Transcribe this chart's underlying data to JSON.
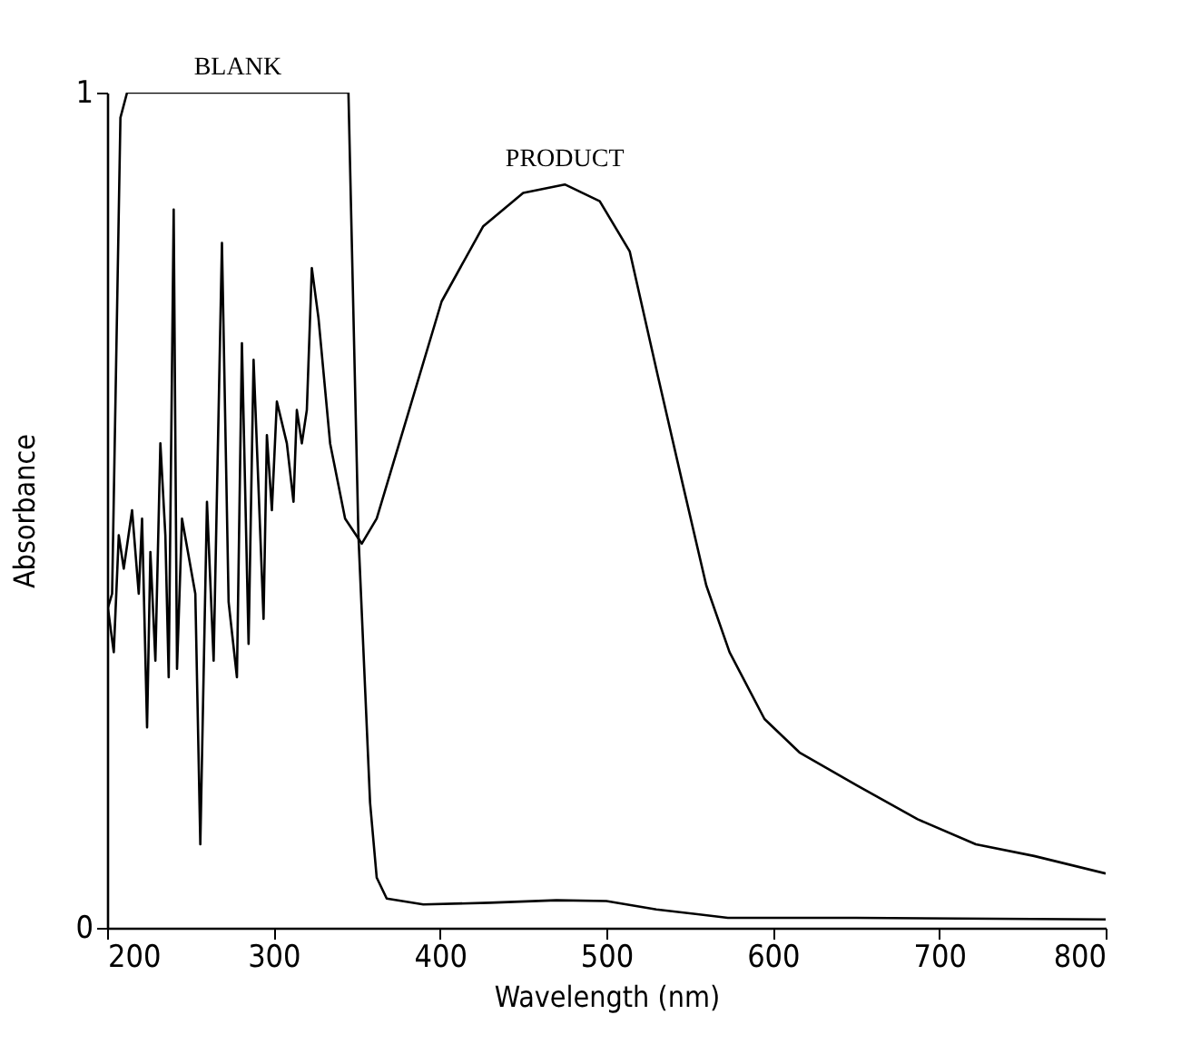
{
  "chart_data": {
    "type": "line",
    "xlabel": "Wavelength (nm)",
    "ylabel": "Absorbance",
    "xlim": [
      200,
      800
    ],
    "xticks": [
      200,
      300,
      400,
      500,
      600,
      700,
      800
    ],
    "ylim": [
      0,
      1
    ],
    "yticks": [
      0,
      1
    ],
    "grid": false,
    "marker": "none",
    "line_style": "solid",
    "series": [
      {
        "name": "BLANK",
        "color": "#000000",
        "x": [
          200,
          203,
          208,
          212,
          345,
          351,
          358,
          362,
          368,
          390,
          430,
          470,
          500,
          530,
          573,
          650,
          800
        ],
        "values": [
          0.38,
          0.4,
          0.97,
          1,
          1,
          0.47,
          0.15,
          0.06,
          0.035,
          0.028,
          0.03,
          0.033,
          0.032,
          0.022,
          0.012,
          0.012,
          0.01
        ]
      },
      {
        "name": "PRODUCT",
        "color": "#000000",
        "x": [
          200,
          204,
          207,
          210,
          215,
          219,
          221,
          224,
          226,
          229,
          232,
          235,
          237,
          240,
          242,
          245,
          253,
          256,
          260,
          264,
          269,
          273,
          278,
          281,
          285,
          288,
          294,
          296,
          299,
          302,
          308,
          312,
          314,
          317,
          320,
          323,
          327,
          334,
          343,
          353,
          362,
          380,
          401,
          426,
          450,
          475,
          496,
          514,
          531,
          546,
          560,
          574,
          595,
          616,
          651,
          687,
          722,
          757,
          800
        ],
        "values": [
          0.39,
          0.33,
          0.47,
          0.43,
          0.5,
          0.4,
          0.49,
          0.24,
          0.45,
          0.32,
          0.58,
          0.47,
          0.3,
          0.86,
          0.31,
          0.49,
          0.4,
          0.1,
          0.51,
          0.32,
          0.82,
          0.39,
          0.3,
          0.7,
          0.34,
          0.68,
          0.37,
          0.59,
          0.5,
          0.63,
          0.58,
          0.51,
          0.62,
          0.58,
          0.62,
          0.79,
          0.73,
          0.58,
          0.49,
          0.46,
          0.49,
          0.61,
          0.75,
          0.84,
          0.88,
          0.89,
          0.87,
          0.81,
          0.66,
          0.53,
          0.41,
          0.33,
          0.25,
          0.21,
          0.17,
          0.13,
          0.1,
          0.086,
          0.065
        ]
      }
    ]
  }
}
